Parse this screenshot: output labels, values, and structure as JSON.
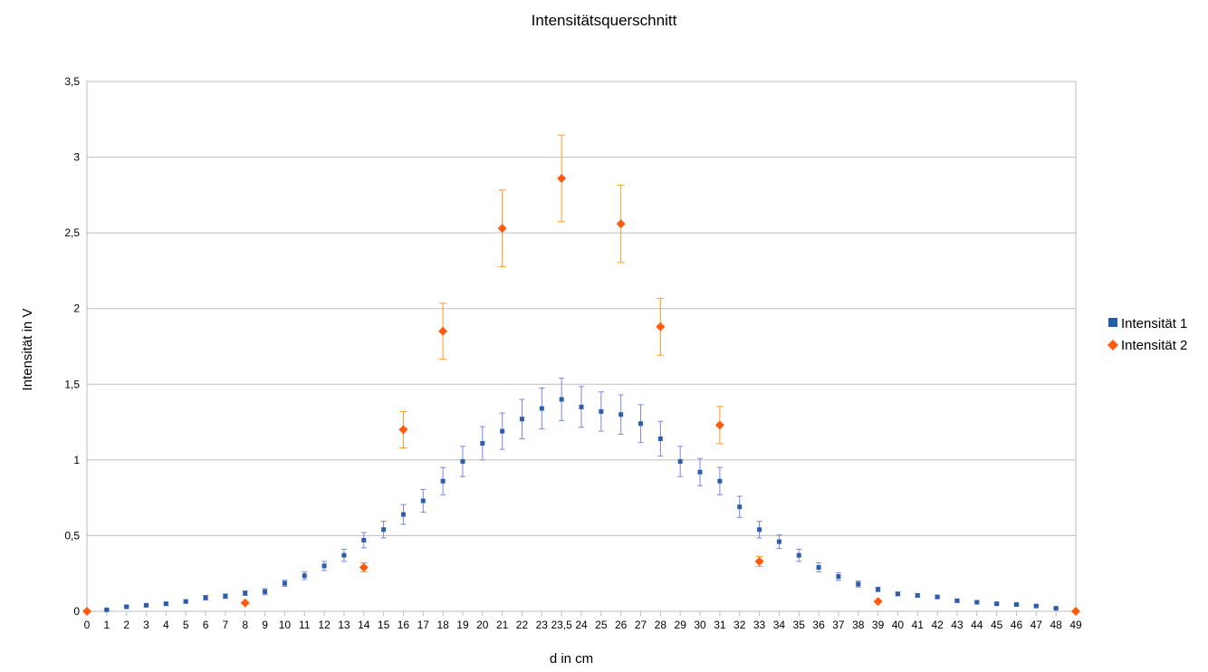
{
  "chart_data": {
    "type": "scatter",
    "title": "Intensitätsquerschnitt",
    "xlabel": "d in cm",
    "ylabel": "Intensität in V",
    "ylim": [
      0,
      3.5
    ],
    "y_ticks": [
      "0",
      "0,5",
      "1",
      "1,5",
      "2",
      "2,5",
      "3",
      "3,5"
    ],
    "y_tick_values": [
      0,
      0.5,
      1,
      1.5,
      2,
      2.5,
      3,
      3.5
    ],
    "categories": [
      "0",
      "1",
      "2",
      "3",
      "4",
      "5",
      "6",
      "7",
      "8",
      "9",
      "10",
      "11",
      "12",
      "13",
      "14",
      "15",
      "16",
      "17",
      "18",
      "19",
      "20",
      "21",
      "22",
      "23",
      "23,5",
      "24",
      "25",
      "26",
      "27",
      "28",
      "29",
      "30",
      "31",
      "32",
      "33",
      "34",
      "35",
      "36",
      "37",
      "38",
      "39",
      "40",
      "41",
      "42",
      "43",
      "44",
      "45",
      "46",
      "47",
      "48",
      "49"
    ],
    "grid": "horizontal",
    "legend_position": "right",
    "series": [
      {
        "name": "Intensität 1",
        "color": "#2e5ea8",
        "error_color": "#7b86e6",
        "marker": "square",
        "values": [
          0,
          0.01,
          0.03,
          0.04,
          0.05,
          0.065,
          0.09,
          0.1,
          0.12,
          0.13,
          0.185,
          0.235,
          0.3,
          0.37,
          0.47,
          0.54,
          0.64,
          0.73,
          0.86,
          0.99,
          1.11,
          1.19,
          1.27,
          1.34,
          1.4,
          1.35,
          1.32,
          1.3,
          1.24,
          1.14,
          0.99,
          0.92,
          0.86,
          0.69,
          0.54,
          0.46,
          0.37,
          0.29,
          0.23,
          0.18,
          0.145,
          0.115,
          0.105,
          0.095,
          0.07,
          0.06,
          0.05,
          0.045,
          0.035,
          0.02,
          0
        ],
        "errors": [
          0,
          0.005,
          0.007,
          0.008,
          0.009,
          0.01,
          0.015,
          0.015,
          0.015,
          0.02,
          0.02,
          0.025,
          0.03,
          0.04,
          0.05,
          0.055,
          0.065,
          0.075,
          0.09,
          0.1,
          0.11,
          0.12,
          0.13,
          0.135,
          0.14,
          0.135,
          0.13,
          0.13,
          0.125,
          0.115,
          0.1,
          0.09,
          0.09,
          0.07,
          0.055,
          0.045,
          0.04,
          0.03,
          0.025,
          0.02,
          0.015,
          0.012,
          0.011,
          0.01,
          0.008,
          0.007,
          0.006,
          0.005,
          0.004,
          0.003,
          0
        ]
      },
      {
        "name": "Intensität 2",
        "color": "#ff5b0f",
        "error_color": "#ff9a22",
        "marker": "diamond",
        "points": [
          {
            "x": "0",
            "y": 0,
            "err": 0
          },
          {
            "x": "8",
            "y": 0.055,
            "err": 0
          },
          {
            "x": "14",
            "y": 0.29,
            "err": 0.03
          },
          {
            "x": "16",
            "y": 1.2,
            "err": 0.12
          },
          {
            "x": "18",
            "y": 1.85,
            "err": 0.185
          },
          {
            "x": "21",
            "y": 2.53,
            "err": 0.253
          },
          {
            "x": "23,5",
            "y": 2.86,
            "err": 0.286
          },
          {
            "x": "26",
            "y": 2.56,
            "err": 0.256
          },
          {
            "x": "28",
            "y": 1.88,
            "err": 0.188
          },
          {
            "x": "31",
            "y": 1.23,
            "err": 0.123
          },
          {
            "x": "33",
            "y": 0.33,
            "err": 0.033
          },
          {
            "x": "39",
            "y": 0.065,
            "err": 0
          },
          {
            "x": "49",
            "y": 0,
            "err": 0
          }
        ]
      }
    ]
  }
}
